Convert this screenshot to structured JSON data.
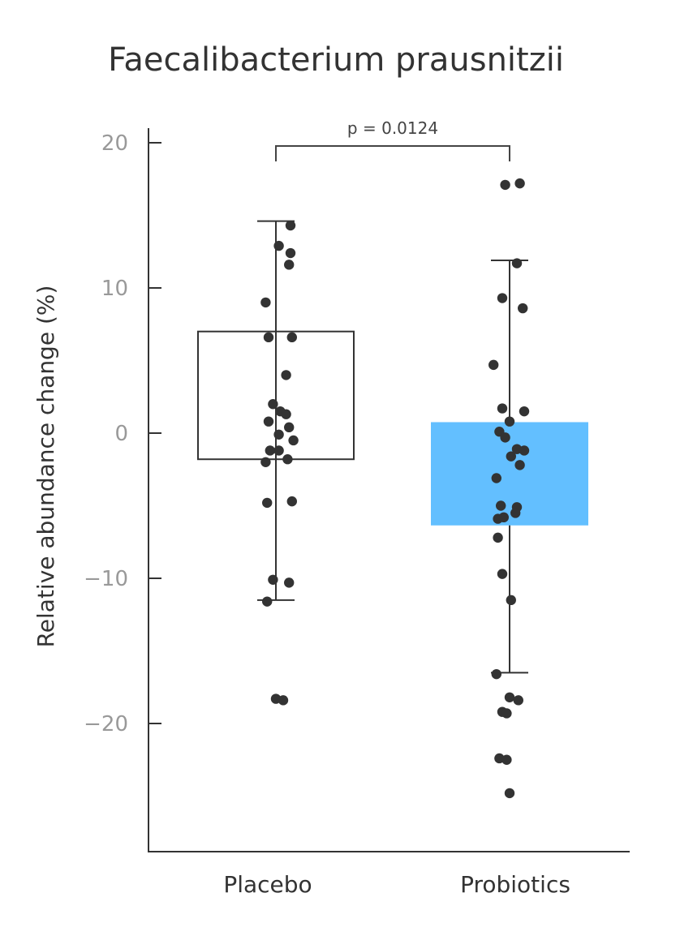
{
  "chart_data": {
    "type": "box",
    "title": "Faecalibacterium prausnitzii",
    "ylabel": "Relative abundance change (%)",
    "xlabel": "",
    "categories": [
      "Placebo",
      "Probiotics"
    ],
    "ylim": [
      -28.5,
      21
    ],
    "yticks": [
      20,
      10,
      0,
      -10,
      -20
    ],
    "ytick_labels": [
      "20",
      "10",
      "0",
      "−10",
      "−20"
    ],
    "grid": false,
    "annotation": {
      "text": "p = 0.0124",
      "between": [
        "Placebo",
        "Probiotics"
      ]
    },
    "groups": [
      {
        "name": "Placebo",
        "box_fill": "#ffffff",
        "box_stroke": "#333333",
        "q1": -1.8,
        "q3": 7.0,
        "whisker_low": -11.5,
        "whisker_high": 14.6,
        "points": [
          [
            0.1,
            14.3
          ],
          [
            0.02,
            12.9
          ],
          [
            0.1,
            12.4
          ],
          [
            0.09,
            11.6
          ],
          [
            -0.07,
            9.0
          ],
          [
            -0.05,
            6.6
          ],
          [
            0.11,
            6.6
          ],
          [
            0.07,
            4.0
          ],
          [
            -0.02,
            2.0
          ],
          [
            0.03,
            1.5
          ],
          [
            0.07,
            1.3
          ],
          [
            -0.05,
            0.8
          ],
          [
            0.09,
            0.4
          ],
          [
            0.02,
            -0.1
          ],
          [
            0.12,
            -0.5
          ],
          [
            -0.04,
            -1.2
          ],
          [
            0.02,
            -1.2
          ],
          [
            0.08,
            -1.8
          ],
          [
            -0.07,
            -2.0
          ],
          [
            -0.06,
            -4.8
          ],
          [
            0.11,
            -4.7
          ],
          [
            -0.02,
            -10.1
          ],
          [
            0.09,
            -10.3
          ],
          [
            -0.06,
            -11.6
          ],
          [
            0.0,
            -18.3
          ],
          [
            0.05,
            -18.4
          ]
        ]
      },
      {
        "name": "Probiotics",
        "box_fill": "#63bfff",
        "box_stroke": "#63bfff",
        "q1": -6.3,
        "q3": 0.7,
        "whisker_low": -16.5,
        "whisker_high": 11.9,
        "points": [
          [
            -0.03,
            17.1
          ],
          [
            0.07,
            17.2
          ],
          [
            0.05,
            11.7
          ],
          [
            -0.05,
            9.3
          ],
          [
            0.09,
            8.6
          ],
          [
            -0.11,
            4.7
          ],
          [
            -0.05,
            1.7
          ],
          [
            0.1,
            1.5
          ],
          [
            0.0,
            0.8
          ],
          [
            -0.07,
            0.1
          ],
          [
            -0.03,
            -0.3
          ],
          [
            0.05,
            -1.1
          ],
          [
            0.1,
            -1.2
          ],
          [
            0.01,
            -1.6
          ],
          [
            0.07,
            -2.2
          ],
          [
            -0.09,
            -3.1
          ],
          [
            0.05,
            -5.1
          ],
          [
            -0.06,
            -5.0
          ],
          [
            0.04,
            -5.5
          ],
          [
            -0.04,
            -5.8
          ],
          [
            -0.08,
            -5.9
          ],
          [
            -0.08,
            -7.2
          ],
          [
            -0.05,
            -9.7
          ],
          [
            0.01,
            -11.5
          ],
          [
            -0.09,
            -16.6
          ],
          [
            0.0,
            -18.2
          ],
          [
            0.06,
            -18.4
          ],
          [
            -0.05,
            -19.2
          ],
          [
            -0.02,
            -19.3
          ],
          [
            -0.07,
            -22.4
          ],
          [
            -0.02,
            -22.5
          ],
          [
            0.0,
            -24.8
          ]
        ]
      }
    ]
  }
}
